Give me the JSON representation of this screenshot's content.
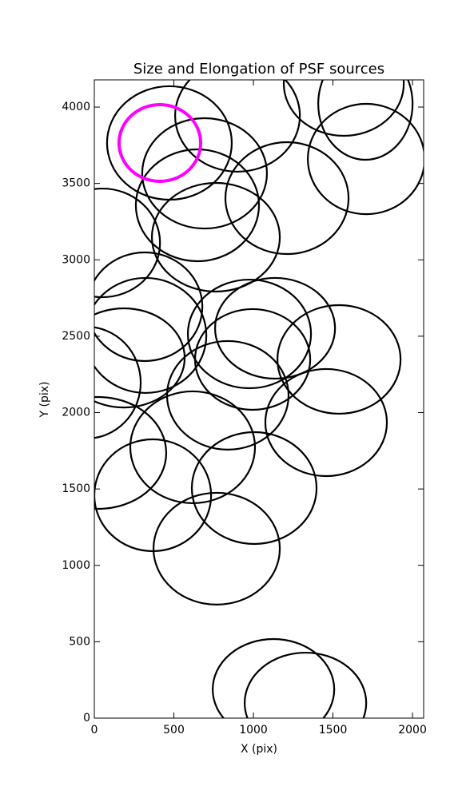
{
  "chart_data": {
    "type": "ellipse",
    "title": "Size and Elongation of PSF sources",
    "xlabel": "X (pix)",
    "ylabel": "Y (pix)",
    "xlim": [
      0,
      2070
    ],
    "ylim": [
      0,
      4178
    ],
    "xticks": [
      0,
      500,
      1000,
      1500,
      2000
    ],
    "yticks": [
      0,
      500,
      1000,
      1500,
      2000,
      2500,
      3000,
      3500,
      4000
    ],
    "grid": false,
    "series": [
      {
        "color": "#000000",
        "x": [
          472,
          900,
          693,
          648,
          764,
          1211,
          1568,
          1704,
          1709,
          51,
          317,
          322,
          186,
          -50,
          25,
          367,
          618,
          839,
          975,
          1136,
          995,
          1538,
          1457,
          1005,
          769,
          1126,
          1327
        ],
        "y": [
          3765,
          3943,
          3566,
          3357,
          3148,
          3404,
          4152,
          4021,
          3660,
          3111,
          2693,
          2505,
          2358,
          2196,
          1736,
          1459,
          1773,
          2113,
          2515,
          2552,
          2348,
          2348,
          1935,
          1506,
          1109,
          188,
          99
        ],
        "width": [
          784,
          784,
          784,
          774,
          804,
          774,
          754,
          593,
          734,
          724,
          724,
          764,
          764,
          683,
          854,
          734,
          784,
          764,
          774,
          754,
          724,
          774,
          764,
          784,
          794,
          764,
          764
        ],
        "height": [
          743,
          732,
          722,
          732,
          711,
          732,
          680,
          732,
          722,
          711,
          711,
          753,
          649,
          732,
          732,
          732,
          732,
          711,
          711,
          659,
          659,
          711,
          701,
          732,
          732,
          659,
          659
        ]
      },
      {
        "color": "#ff00ff",
        "x": [
          412
        ],
        "y": [
          3765
        ],
        "width": [
          513
        ],
        "height": [
          502
        ]
      }
    ]
  }
}
